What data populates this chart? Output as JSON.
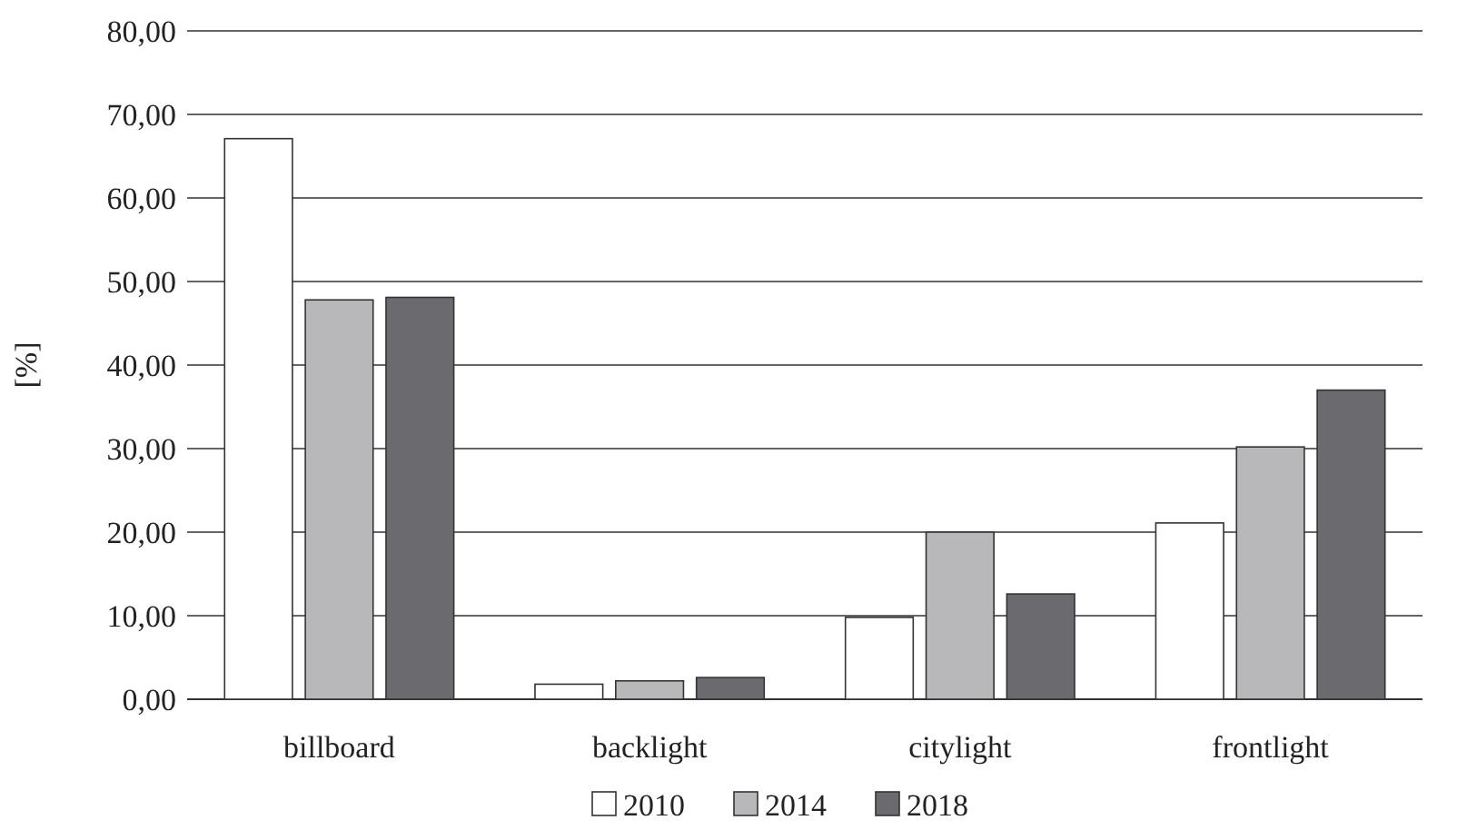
{
  "chart_data": {
    "type": "bar",
    "ylabel": "[%]",
    "categories": [
      "billboard",
      "backlight",
      "citylight",
      "frontlight"
    ],
    "series": [
      {
        "name": "2010",
        "color": "#ffffff",
        "values": [
          67.1,
          1.8,
          9.8,
          21.1
        ]
      },
      {
        "name": "2014",
        "color": "#b8b8bb",
        "values": [
          47.8,
          2.2,
          20.0,
          30.2
        ]
      },
      {
        "name": "2018",
        "color": "#6b6b6f",
        "values": [
          48.1,
          2.6,
          12.6,
          37.0
        ]
      }
    ],
    "ylim": [
      0,
      80
    ],
    "yticks": [
      {
        "value": 0,
        "label": "0,00"
      },
      {
        "value": 10,
        "label": "10,00"
      },
      {
        "value": 20,
        "label": "20,00"
      },
      {
        "value": 30,
        "label": "30,00"
      },
      {
        "value": 40,
        "label": "40,00"
      },
      {
        "value": 50,
        "label": "50,00"
      },
      {
        "value": 60,
        "label": "60,00"
      },
      {
        "value": 70,
        "label": "70,00"
      },
      {
        "value": 80,
        "label": "80,00"
      }
    ],
    "grid": "y",
    "legend": "bottom"
  }
}
